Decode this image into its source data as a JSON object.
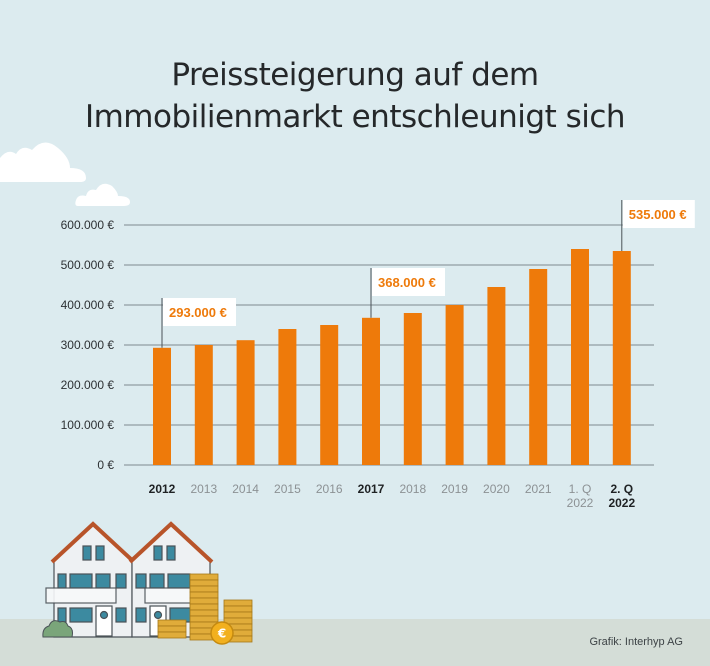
{
  "title_lines": [
    "Preissteigerung auf dem",
    "Immobilienmarkt entschleunigt sich"
  ],
  "source": "Grafik: Interhyp AG",
  "colors": {
    "bar": "#ee7a0a",
    "background": "#dcebef",
    "ground": "#d4ddd7",
    "label": "#ee7a0a",
    "gridline": "#7e8a8f"
  },
  "chart_data": {
    "type": "bar",
    "title": "Preissteigerung auf dem Immobilienmarkt entschleunigt sich",
    "xlabel": "",
    "ylabel": "",
    "ylim": [
      0,
      600000
    ],
    "yticks": [
      0,
      100000,
      200000,
      300000,
      400000,
      500000,
      600000
    ],
    "ytick_labels": [
      "0 €",
      "100.000 €",
      "200.000 €",
      "300.000 €",
      "400.000 €",
      "500.000 €",
      "600.000 €"
    ],
    "grid": true,
    "categories": [
      {
        "line1": "2012",
        "line2": "",
        "bold": true
      },
      {
        "line1": "2013",
        "line2": "",
        "bold": false
      },
      {
        "line1": "2014",
        "line2": "",
        "bold": false
      },
      {
        "line1": "2015",
        "line2": "",
        "bold": false
      },
      {
        "line1": "2016",
        "line2": "",
        "bold": false
      },
      {
        "line1": "2017",
        "line2": "",
        "bold": true
      },
      {
        "line1": "2018",
        "line2": "",
        "bold": false
      },
      {
        "line1": "2019",
        "line2": "",
        "bold": false
      },
      {
        "line1": "2020",
        "line2": "",
        "bold": false
      },
      {
        "line1": "2021",
        "line2": "",
        "bold": false
      },
      {
        "line1": "1. Q",
        "line2": "2022",
        "bold": false
      },
      {
        "line1": "2. Q",
        "line2": "2022",
        "bold": true
      }
    ],
    "values": [
      293000,
      300000,
      312000,
      340000,
      350000,
      368000,
      380000,
      400000,
      445000,
      490000,
      540000,
      535000
    ],
    "annotations": [
      {
        "index": 0,
        "text": "293.000 €"
      },
      {
        "index": 5,
        "text": "368.000 €"
      },
      {
        "index": 11,
        "text": "535.000 €"
      }
    ]
  }
}
